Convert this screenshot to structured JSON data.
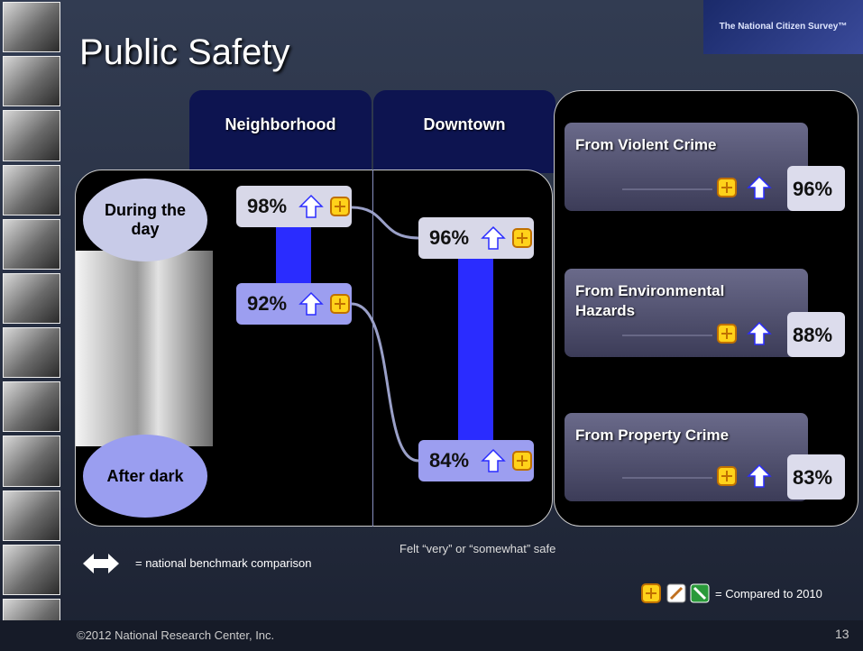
{
  "header": {
    "title": "Public Safety",
    "logo": "The National Citizen Survey™"
  },
  "columns": [
    "Neighborhood",
    "Downtown"
  ],
  "rows": [
    "During the day",
    "After dark"
  ],
  "table": {
    "rows": [
      [
        "98%",
        "96%"
      ],
      [
        "92%",
        "84%"
      ]
    ]
  },
  "safety": [
    {
      "label": "From Violent Crime",
      "value": "96%"
    },
    {
      "label": "From Environmental Hazards",
      "value": "88%"
    },
    {
      "label": "From Property Crime",
      "value": "83%"
    }
  ],
  "legend": {
    "benchmark": "= national benchmark comparison",
    "compared": "= Compared to 2010"
  },
  "note": "Felt “very” or “somewhat” safe",
  "footer": {
    "copyright": "©2012 National Research Center, Inc.",
    "page": "13"
  }
}
